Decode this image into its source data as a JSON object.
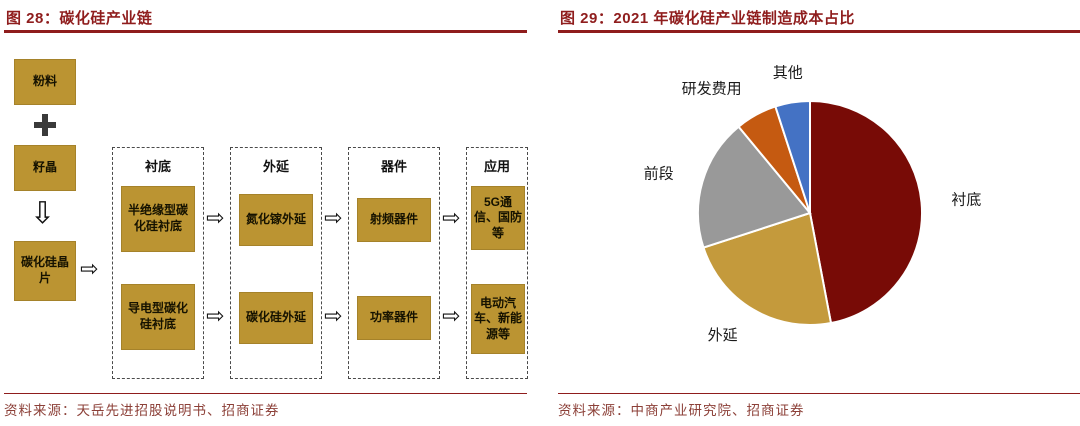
{
  "figure28": {
    "title": "图 28：碳化硅产业链",
    "source": "资料来源：天岳先进招股说明书、招商证券",
    "flow": {
      "powder": "粉料",
      "seed": "籽晶",
      "wafer": "碳化硅晶片",
      "columns": [
        {
          "header": "衬底",
          "boxes": [
            "半绝缘型碳化硅衬底",
            "导电型碳化硅衬底"
          ]
        },
        {
          "header": "外延",
          "boxes": [
            "氮化镓外延",
            "碳化硅外延"
          ]
        },
        {
          "header": "器件",
          "boxes": [
            "射频器件",
            "功率器件"
          ]
        },
        {
          "header": "应用",
          "boxes": [
            "5G通信、国防等",
            "电动汽车、新能源等"
          ]
        }
      ]
    }
  },
  "figure29": {
    "title": "图 29：2021 年碳化硅产业链制造成本占比",
    "source": "资料来源：中商产业研究院、招商证券"
  },
  "icons": {
    "right_arrow": "⇨",
    "down_arrow": "⇩",
    "plus": "plus-cross"
  },
  "colors": {
    "title_red": "#8F1D1D",
    "rule_red": "#8F1D1D",
    "box_gold": "#BB9432",
    "source_text": "#8C4038"
  },
  "chart_data": {
    "type": "pie",
    "title": "2021 年碳化硅产业链制造成本占比",
    "labels": [
      "衬底",
      "外延",
      "前段",
      "研发费用",
      "其他"
    ],
    "values": [
      47,
      23,
      19,
      6,
      5
    ],
    "colors": [
      "#780B06",
      "#C49A3C",
      "#999999",
      "#C55A11",
      "#4472C4"
    ],
    "start_angle": "top",
    "direction": "clockwise",
    "labels_position": "outside",
    "legend": false
  }
}
